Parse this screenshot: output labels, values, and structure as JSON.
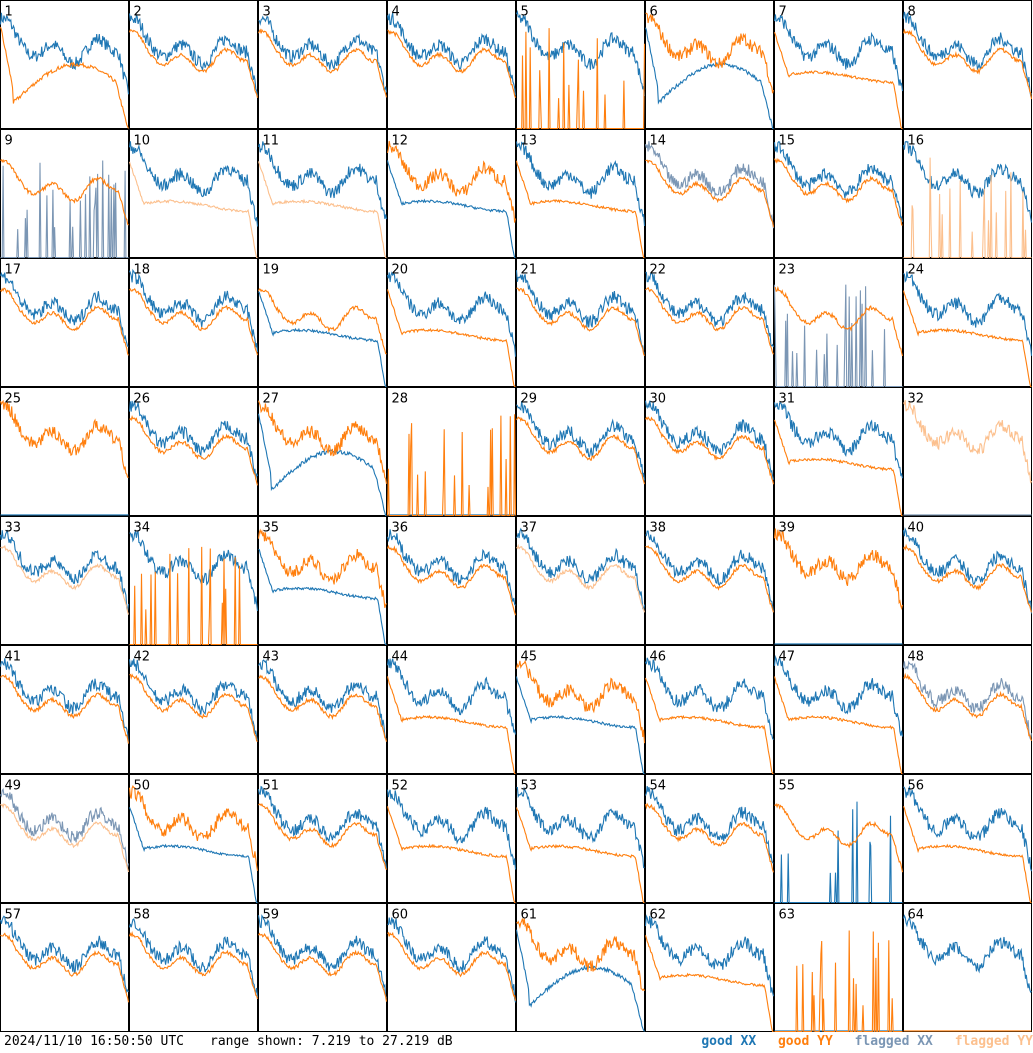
{
  "footer": {
    "timestamp": "2024/11/10 16:50:50 UTC",
    "range_text": "range shown: 7.219 to 27.219 dB"
  },
  "legend": [
    {
      "label": "good XX",
      "color": "#1f77b4"
    },
    {
      "label": "good YY",
      "color": "#ff7f0e"
    },
    {
      "label": "flagged XX",
      "color": "#7b96b4"
    },
    {
      "label": "flagged YY",
      "color": "#fcc08e"
    }
  ],
  "chart_data": {
    "type": "line",
    "panel_count": 64,
    "grid": "8x8",
    "ylim": [
      7.219,
      27.219
    ],
    "y_units": "dB",
    "panels": [
      {
        "n": 1,
        "xx": "good",
        "yy": "good",
        "profile": "yy_drop_mid"
      },
      {
        "n": 2,
        "xx": "good",
        "yy": "good",
        "profile": "overlap"
      },
      {
        "n": 3,
        "xx": "good",
        "yy": "good",
        "profile": "overlap"
      },
      {
        "n": 4,
        "xx": "good",
        "yy": "good",
        "profile": "overlap"
      },
      {
        "n": 5,
        "xx": "good",
        "yy": "good",
        "profile": "yy_absent"
      },
      {
        "n": 6,
        "xx": "good",
        "yy": "good",
        "profile": "xx_low_hump"
      },
      {
        "n": 7,
        "xx": "good",
        "yy": "good",
        "profile": "yy_lower"
      },
      {
        "n": 8,
        "xx": "good",
        "yy": "good",
        "profile": "overlap_dropoff"
      },
      {
        "n": 9,
        "xx": "flagged",
        "yy": "good",
        "profile": "xx_spikes"
      },
      {
        "n": 10,
        "xx": "good",
        "yy": "flagged",
        "profile": "yy_lower"
      },
      {
        "n": 11,
        "xx": "good",
        "yy": "flagged",
        "profile": "yy_lower"
      },
      {
        "n": 12,
        "xx": "good",
        "yy": "good",
        "profile": "xx_lower"
      },
      {
        "n": 13,
        "xx": "good",
        "yy": "good",
        "profile": "yy_lower"
      },
      {
        "n": 14,
        "xx": "flagged",
        "yy": "good",
        "profile": "overlap"
      },
      {
        "n": 15,
        "xx": "good",
        "yy": "good",
        "profile": "overlap"
      },
      {
        "n": 16,
        "xx": "good",
        "yy": "flagged",
        "profile": "yy_absent"
      },
      {
        "n": 17,
        "xx": "good",
        "yy": "good",
        "profile": "overlap"
      },
      {
        "n": 18,
        "xx": "good",
        "yy": "good",
        "profile": "overlap"
      },
      {
        "n": 19,
        "xx": "good",
        "yy": "good",
        "profile": "xx_dip"
      },
      {
        "n": 20,
        "xx": "good",
        "yy": "good",
        "profile": "yy_lower"
      },
      {
        "n": 21,
        "xx": "good",
        "yy": "good",
        "profile": "overlap"
      },
      {
        "n": 22,
        "xx": "good",
        "yy": "good",
        "profile": "overlap"
      },
      {
        "n": 23,
        "xx": "flagged",
        "yy": "good",
        "profile": "xx_spikes"
      },
      {
        "n": 24,
        "xx": "good",
        "yy": "good",
        "profile": "yy_lower"
      },
      {
        "n": 25,
        "xx": "good",
        "yy": "good",
        "profile": "yy_only"
      },
      {
        "n": 26,
        "xx": "good",
        "yy": "good",
        "profile": "overlap"
      },
      {
        "n": 27,
        "xx": "good",
        "yy": "good",
        "profile": "xx_low_hump"
      },
      {
        "n": 28,
        "xx": "good",
        "yy": "good",
        "profile": "dead"
      },
      {
        "n": 29,
        "xx": "good",
        "yy": "good",
        "profile": "overlap"
      },
      {
        "n": 30,
        "xx": "good",
        "yy": "good",
        "profile": "overlap"
      },
      {
        "n": 31,
        "xx": "good",
        "yy": "good",
        "profile": "yy_lower"
      },
      {
        "n": 32,
        "xx": "flagged",
        "yy": "flagged",
        "profile": "yy_only"
      },
      {
        "n": 33,
        "xx": "good",
        "yy": "flagged",
        "profile": "overlap"
      },
      {
        "n": 34,
        "xx": "good",
        "yy": "good",
        "profile": "dead_yy"
      },
      {
        "n": 35,
        "xx": "good",
        "yy": "good",
        "profile": "xx_lower"
      },
      {
        "n": 36,
        "xx": "good",
        "yy": "good",
        "profile": "overlap"
      },
      {
        "n": 37,
        "xx": "good",
        "yy": "flagged",
        "profile": "overlap"
      },
      {
        "n": 38,
        "xx": "good",
        "yy": "good",
        "profile": "overlap"
      },
      {
        "n": 39,
        "xx": "good",
        "yy": "good",
        "profile": "yy_only"
      },
      {
        "n": 40,
        "xx": "good",
        "yy": "good",
        "profile": "overlap"
      },
      {
        "n": 41,
        "xx": "good",
        "yy": "good",
        "profile": "overlap"
      },
      {
        "n": 42,
        "xx": "good",
        "yy": "good",
        "profile": "overlap"
      },
      {
        "n": 43,
        "xx": "good",
        "yy": "good",
        "profile": "overlap"
      },
      {
        "n": 44,
        "xx": "good",
        "yy": "good",
        "profile": "yy_lower"
      },
      {
        "n": 45,
        "xx": "good",
        "yy": "good",
        "profile": "xx_lower"
      },
      {
        "n": 46,
        "xx": "good",
        "yy": "good",
        "profile": "yy_lower"
      },
      {
        "n": 47,
        "xx": "good",
        "yy": "good",
        "profile": "yy_lower"
      },
      {
        "n": 48,
        "xx": "flagged",
        "yy": "good",
        "profile": "overlap"
      },
      {
        "n": 49,
        "xx": "flagged",
        "yy": "flagged",
        "profile": "overlap"
      },
      {
        "n": 50,
        "xx": "good",
        "yy": "good",
        "profile": "xx_lower"
      },
      {
        "n": 51,
        "xx": "good",
        "yy": "good",
        "profile": "overlap"
      },
      {
        "n": 52,
        "xx": "good",
        "yy": "good",
        "profile": "yy_lower"
      },
      {
        "n": 53,
        "xx": "good",
        "yy": "good",
        "profile": "yy_lower"
      },
      {
        "n": 54,
        "xx": "good",
        "yy": "good",
        "profile": "overlap"
      },
      {
        "n": 55,
        "xx": "good",
        "yy": "good",
        "profile": "xx_spikes"
      },
      {
        "n": 56,
        "xx": "good",
        "yy": "good",
        "profile": "yy_lower"
      },
      {
        "n": 57,
        "xx": "good",
        "yy": "good",
        "profile": "overlap"
      },
      {
        "n": 58,
        "xx": "good",
        "yy": "good",
        "profile": "overlap"
      },
      {
        "n": 59,
        "xx": "good",
        "yy": "good",
        "profile": "overlap_dropoff"
      },
      {
        "n": 60,
        "xx": "good",
        "yy": "good",
        "profile": "overlap"
      },
      {
        "n": 61,
        "xx": "good",
        "yy": "good",
        "profile": "xx_low_hump"
      },
      {
        "n": 62,
        "xx": "good",
        "yy": "good",
        "profile": "yy_lower"
      },
      {
        "n": 63,
        "xx": "good",
        "yy": "good",
        "profile": "dead"
      },
      {
        "n": 64,
        "xx": "good",
        "yy": "good",
        "profile": "xx_only"
      }
    ]
  }
}
